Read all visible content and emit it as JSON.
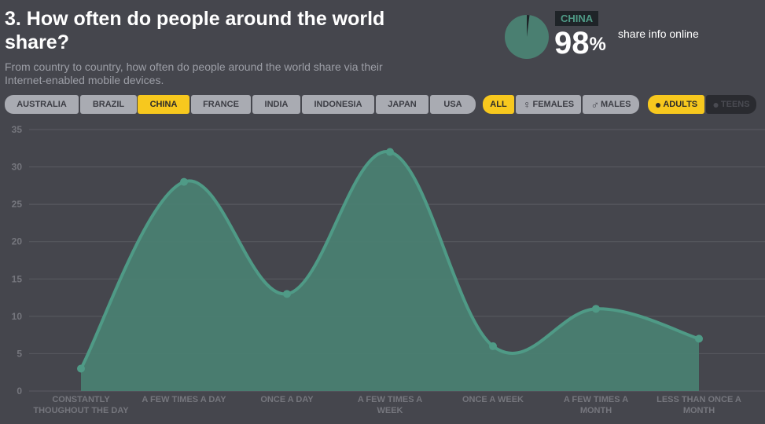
{
  "header": {
    "title": "3. How often do people around the world share?",
    "subtitle": "From country to country, how often do people around the world share via their Internet-enabled mobile devices."
  },
  "stat": {
    "country": "CHINA",
    "value": "98",
    "unit": "%",
    "label": "share info online",
    "share_fraction": 0.98
  },
  "filters": {
    "countries": [
      "AUSTRALIA",
      "BRAZIL",
      "CHINA",
      "FRANCE",
      "INDIA",
      "INDONESIA",
      "JAPAN",
      "USA"
    ],
    "selected_country": "CHINA",
    "genders": [
      {
        "label": "ALL",
        "icon": ""
      },
      {
        "label": "FEMALES",
        "icon": "female-icon"
      },
      {
        "label": "MALES",
        "icon": "male-icon"
      }
    ],
    "selected_gender": "ALL",
    "ages": [
      {
        "label": "ADULTS",
        "icon": "adult-person-icon"
      },
      {
        "label": "TEENS",
        "icon": "teen-person-icon"
      }
    ],
    "selected_age": "ADULTS"
  },
  "colors": {
    "background": "#45464d",
    "accent": "#f7c81e",
    "series_fill": "#4a7f71",
    "series_line": "#4f9a86",
    "grid": "#5a5b62"
  },
  "chart_data": {
    "type": "area",
    "categories": [
      "CONSTANTLY THOUGHOUT THE DAY",
      "A FEW TIMES A DAY",
      "ONCE A DAY",
      "A FEW TIMES A WEEK",
      "ONCE A WEEK",
      "A FEW TIMES A MONTH",
      "LESS THAN ONCE A MONTH"
    ],
    "values": [
      3,
      28,
      13,
      32,
      6,
      11,
      7
    ],
    "yticks": [
      0,
      5,
      10,
      15,
      20,
      25,
      30,
      35
    ],
    "ylim": [
      0,
      35
    ],
    "grid": true,
    "legend": "none"
  }
}
